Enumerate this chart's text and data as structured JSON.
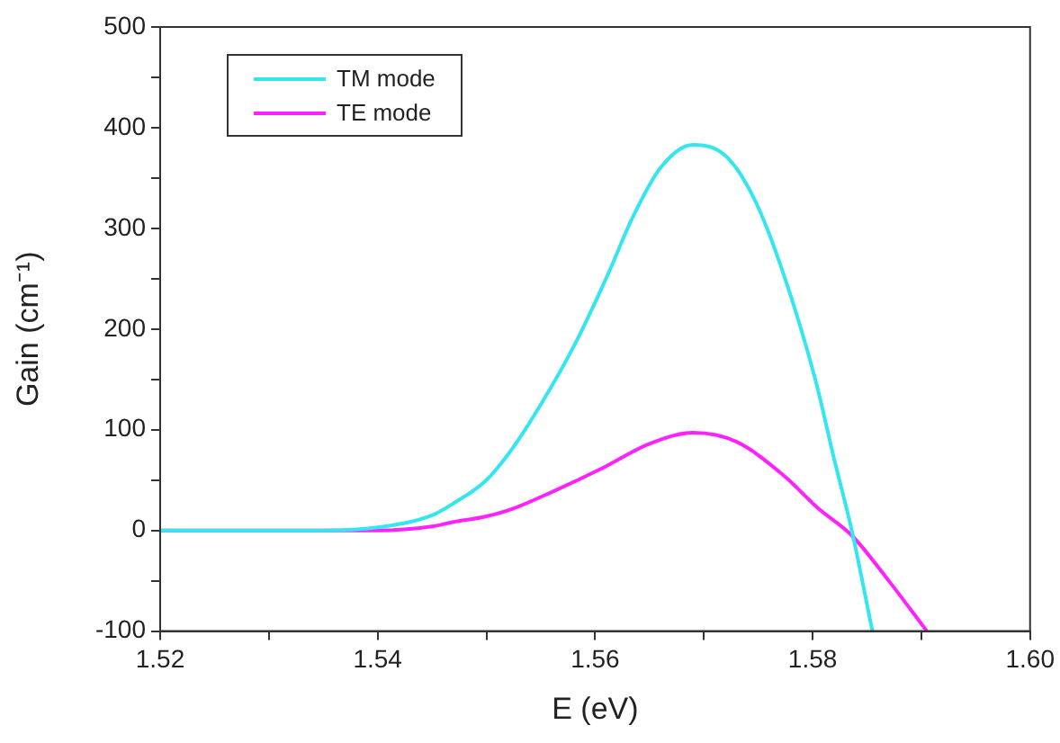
{
  "chart_data": {
    "type": "line",
    "xlabel": "E (eV)",
    "ylabel": "Gain (cm⁻¹)",
    "xlim": [
      1.52,
      1.6
    ],
    "xticks": [
      1.52,
      {
        "value": 1.53,
        "label": null
      },
      1.54,
      {
        "value": 1.55,
        "label": null
      },
      1.56,
      {
        "value": 1.57,
        "label": null
      },
      1.58,
      {
        "value": 1.59,
        "label": null
      },
      {
        "value": 1.6,
        "label": "1.60"
      }
    ],
    "ylim": [
      -100,
      500
    ],
    "yticks": [
      -100,
      {
        "value": -50,
        "label": null
      },
      0,
      {
        "value": 50,
        "label": null
      },
      100,
      {
        "value": 150,
        "label": null
      },
      200,
      {
        "value": 250,
        "label": null
      },
      300,
      {
        "value": 350,
        "label": null
      },
      400,
      {
        "value": 450,
        "label": null
      },
      500
    ],
    "grid": false,
    "legend": "top left",
    "marker": "none",
    "line_style": "solid",
    "series": [
      {
        "name": "TM mode",
        "color": "#33e6f0",
        "x": [
          1.52,
          1.535,
          1.54,
          1.545,
          1.547,
          1.55,
          1.5523,
          1.555,
          1.558,
          1.561,
          1.5635,
          1.566,
          1.569,
          1.572,
          1.5746,
          1.577,
          1.5802,
          1.582,
          1.5836,
          1.5855
        ],
        "values": [
          0,
          0,
          3,
          15,
          27,
          50,
          80,
          125,
          182,
          250,
          312,
          360,
          383,
          372,
          330,
          265,
          152,
          70,
          0,
          -100
        ]
      },
      {
        "name": "TE mode",
        "color": "#ff22ff",
        "x": [
          1.52,
          1.54,
          1.545,
          1.5468,
          1.55,
          1.5523,
          1.556,
          1.5607,
          1.565,
          1.569,
          1.573,
          1.5774,
          1.5805,
          1.5836,
          1.587,
          1.5905
        ],
        "values": [
          0,
          0,
          4,
          8,
          14,
          21,
          38,
          62,
          86,
          97,
          88,
          54,
          22,
          -5,
          -50,
          -100
        ]
      }
    ]
  }
}
